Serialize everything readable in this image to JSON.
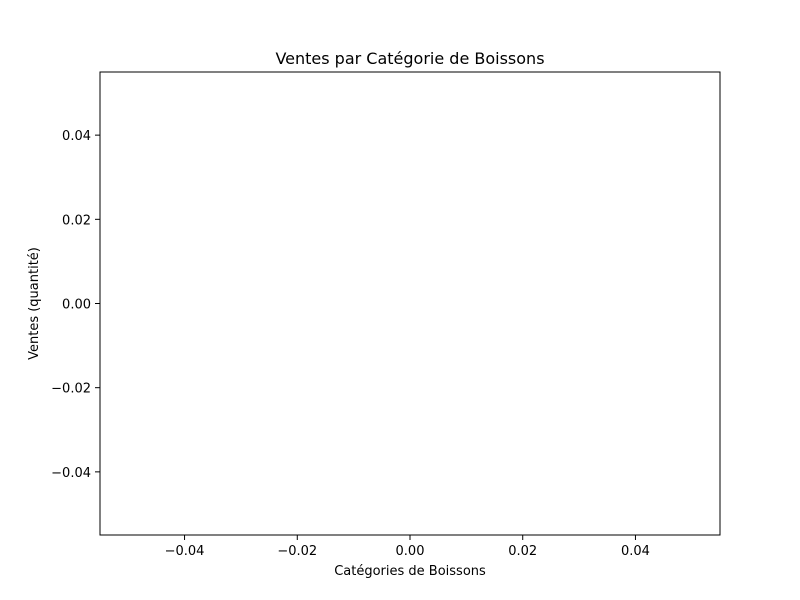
{
  "chart_data": {
    "type": "bar",
    "title": "Ventes par Catégorie de Boissons",
    "xlabel": "Catégories de Boissons",
    "ylabel": "Ventes (quantité)",
    "categories": [],
    "values": [],
    "xlim": [
      -0.055,
      0.055
    ],
    "ylim": [
      -0.055,
      0.055
    ],
    "xticks": [
      -0.04,
      -0.02,
      0.0,
      0.02,
      0.04
    ],
    "xtick_labels": [
      "−0.04",
      "−0.02",
      "0.00",
      "0.02",
      "0.04"
    ],
    "yticks": [
      -0.04,
      -0.02,
      0.0,
      0.02,
      0.04
    ],
    "ytick_labels": [
      "−0.04",
      "−0.02",
      "0.00",
      "0.02",
      "0.04"
    ],
    "grid": false,
    "colors": {
      "axes": "#000000",
      "background": "#ffffff"
    }
  }
}
